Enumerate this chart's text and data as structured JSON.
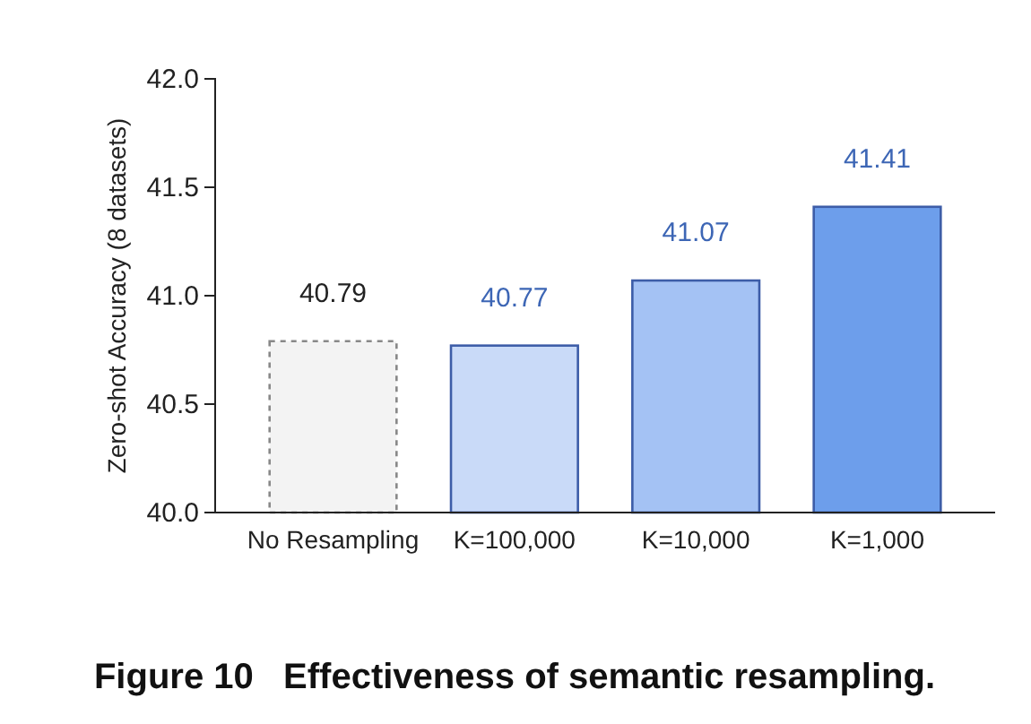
{
  "chart_data": {
    "type": "bar",
    "title": "Figure 10   Effectiveness of semantic resampling.",
    "ylabel": "Zero-shot Accuracy (8 datasets)",
    "categories": [
      "No Resampling",
      "K=100,000",
      "K=10,000",
      "K=1,000"
    ],
    "values": [
      40.79,
      40.77,
      41.07,
      41.41
    ],
    "colors": [
      "#f3f3f3",
      "#c9daf8",
      "#a4c2f4",
      "#6d9eeb"
    ],
    "ylim": [
      40.0,
      42.0
    ],
    "yticks": [
      {
        "value": 40,
        "label": "40.0"
      },
      {
        "value": 40.5,
        "label": "40.5"
      },
      {
        "value": 41,
        "label": "41.0"
      },
      {
        "value": 41.5,
        "label": "41.5"
      },
      {
        "value": 42,
        "label": "42.0"
      }
    ],
    "data_labels": true,
    "grid": false
  }
}
